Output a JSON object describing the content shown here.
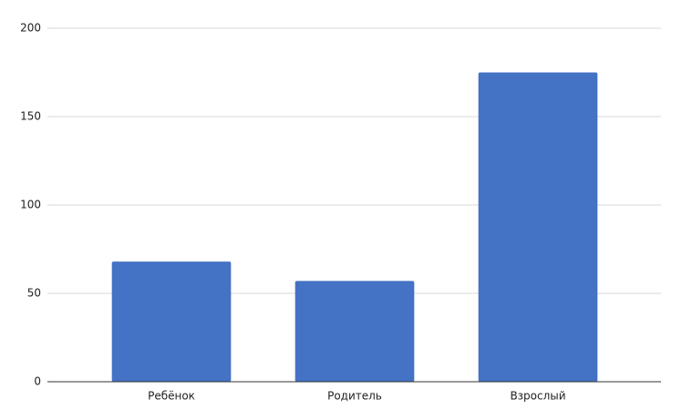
{
  "chart_data": {
    "type": "bar",
    "categories": [
      "Ребёнок",
      "Родитель",
      "Взрослый"
    ],
    "values": [
      68,
      57,
      175
    ],
    "color": "#4472c4",
    "ylim": [
      0,
      200
    ],
    "yticks": [
      0,
      50,
      100,
      150,
      200
    ],
    "grid": true
  }
}
